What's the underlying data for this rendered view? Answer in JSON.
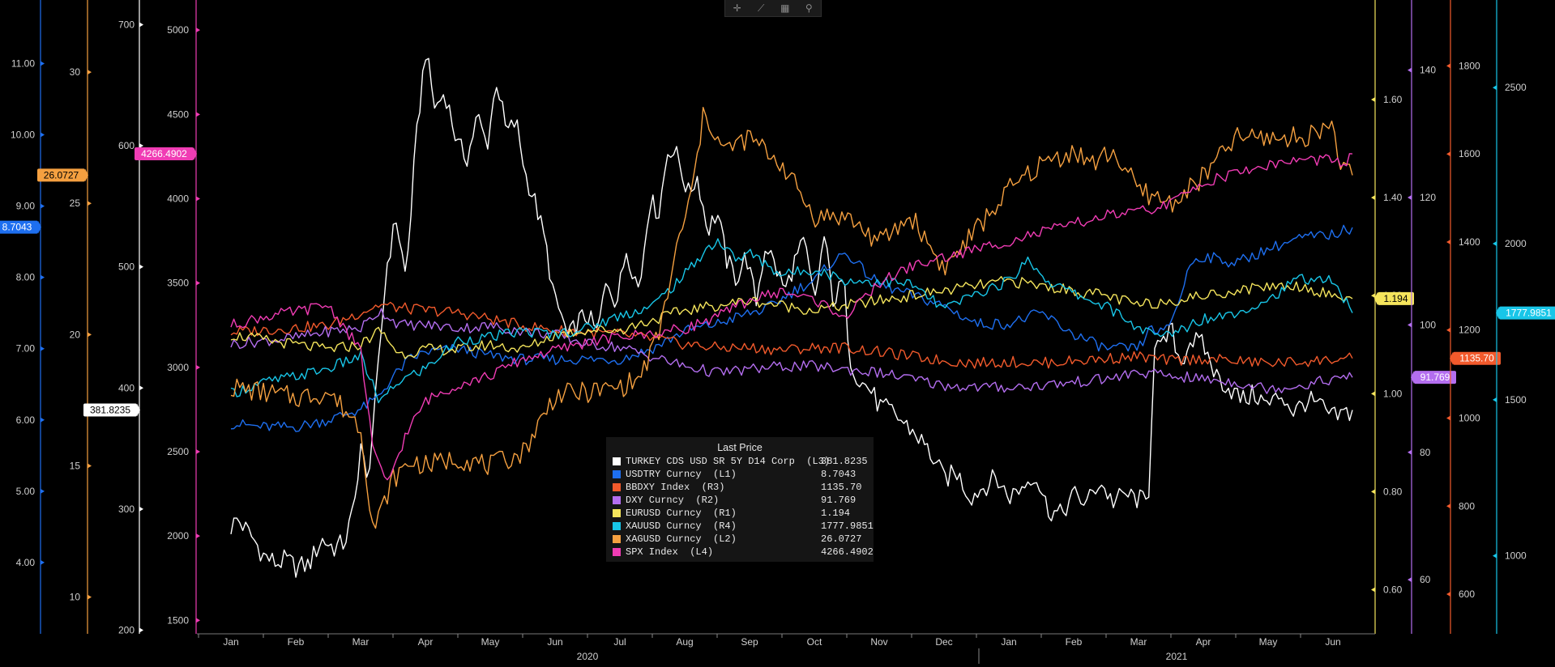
{
  "toolbar": {
    "buttons": [
      {
        "name": "crosshair-icon",
        "glyph": "✛"
      },
      {
        "name": "draw-line-icon",
        "glyph": "⟋"
      },
      {
        "name": "table-icon",
        "glyph": "▦"
      },
      {
        "name": "zoom-icon",
        "glyph": "⚲"
      }
    ]
  },
  "legend": {
    "title": "Last Price",
    "rows": [
      {
        "name": "TURKEY CDS USD SR 5Y D14 Corp  (L3)",
        "value": "381.8235",
        "color": "#ffffff"
      },
      {
        "name": "USDTRY Curncy  (L1)",
        "value": "8.7043",
        "color": "#1e6ff0"
      },
      {
        "name": "BBDXY Index  (R3)",
        "value": "1135.70",
        "color": "#f25a2c"
      },
      {
        "name": "DXY Curncy  (R2)",
        "value": "91.769",
        "color": "#b46ef0"
      },
      {
        "name": "EURUSD Curncy  (R1)",
        "value": "1.194",
        "color": "#f5e55c"
      },
      {
        "name": "XAUUSD Curncy  (R4)",
        "value": "1777.9851",
        "color": "#18c6e8"
      },
      {
        "name": "XAGUSD Curncy  (L2)",
        "value": "26.0727",
        "color": "#f5a040"
      },
      {
        "name": "SPX Index  (L4)",
        "value": "4266.4902",
        "color": "#f03cb4"
      }
    ]
  },
  "chart_data": {
    "type": "line",
    "x_axis": {
      "months": [
        "Jan",
        "Feb",
        "Mar",
        "Apr",
        "May",
        "Jun",
        "Jul",
        "Aug",
        "Sep",
        "Oct",
        "Nov",
        "Dec",
        "Jan",
        "Feb",
        "Mar",
        "Apr",
        "May",
        "Jun"
      ],
      "years": [
        "2020",
        "2021"
      ]
    },
    "axes": {
      "L1": {
        "side": "left",
        "color": "#1e6ff0",
        "range": [
          3.0,
          11.8
        ],
        "ticks": [
          "4.00",
          "5.00",
          "6.00",
          "7.00",
          "8.00",
          "9.00",
          "10.00",
          "11.00"
        ],
        "tick_values": [
          4,
          5,
          6,
          7,
          8,
          9,
          10,
          11
        ],
        "last_label": "8.7043",
        "last_value": 8.7043
      },
      "L2": {
        "side": "left",
        "color": "#f5a040",
        "range": [
          8.6,
          32.5
        ],
        "ticks": [
          "10",
          "15",
          "20",
          "25",
          "30"
        ],
        "tick_values": [
          10,
          15,
          20,
          25,
          30
        ],
        "last_label": "26.0727",
        "last_value": 26.0727
      },
      "L3": {
        "side": "left",
        "color": "#ffffff",
        "range": [
          197,
          715
        ],
        "ticks": [
          "200",
          "300",
          "400",
          "500",
          "600",
          "700"
        ],
        "tick_values": [
          200,
          300,
          400,
          500,
          600,
          700
        ],
        "last_label": "381.8235",
        "last_value": 381.8235
      },
      "L4": {
        "side": "left",
        "color": "#f03cb4",
        "range": [
          1420,
          5140
        ],
        "ticks": [
          "1500",
          "2000",
          "2500",
          "3000",
          "3500",
          "4000",
          "4500",
          "5000"
        ],
        "tick_values": [
          1500,
          2000,
          2500,
          3000,
          3500,
          4000,
          4500,
          5000
        ],
        "last_label": "4266.4902",
        "last_value": 4266.4902
      },
      "R1": {
        "side": "right",
        "color": "#f5e55c",
        "range": [
          0.51,
          1.79
        ],
        "ticks": [
          "0.60",
          "0.80",
          "1.00",
          "1.20",
          "1.40",
          "1.60"
        ],
        "tick_values": [
          0.6,
          0.8,
          1.0,
          1.2,
          1.4,
          1.6
        ],
        "last_label": "1.194",
        "last_value": 1.194
      },
      "R2": {
        "side": "right",
        "color": "#b46ef0",
        "range": [
          51.5,
          150
        ],
        "ticks": [
          "60",
          "80",
          "100",
          "120",
          "140"
        ],
        "tick_values": [
          60,
          80,
          100,
          120,
          140
        ],
        "last_label": "91.769",
        "last_value": 91.769
      },
      "R3": {
        "side": "right",
        "color": "#f25a2c",
        "range": [
          510,
          1935
        ],
        "ticks": [
          "600",
          "800",
          "1000",
          "1200",
          "1400",
          "1600",
          "1800"
        ],
        "tick_values": [
          600,
          800,
          1000,
          1200,
          1400,
          1600,
          1800
        ],
        "last_label": "1135.70",
        "last_value": 1135.7
      },
      "R4": {
        "side": "right",
        "color": "#18c6e8",
        "range": [
          750,
          2760
        ],
        "ticks": [
          "1000",
          "1500",
          "2000",
          "2500"
        ],
        "tick_values": [
          1000,
          1500,
          2000,
          2500
        ],
        "last_label": "1777.9851",
        "last_value": 1777.9851
      }
    },
    "series": [
      {
        "name": "TURKEY CDS USD SR 5Y D14 Corp",
        "axis": "L3",
        "color": "#ffffff",
        "t": [
          0,
          0.1,
          0.35,
          0.5,
          0.7,
          0.85,
          1.0,
          1.2,
          1.4,
          1.6,
          1.75,
          1.9,
          2.0,
          2.1,
          2.25,
          2.4,
          2.55,
          2.7,
          2.85,
          3.0,
          3.15,
          3.3,
          3.5,
          3.65,
          3.8,
          3.95,
          4.1,
          4.25,
          4.4,
          4.55,
          4.7,
          4.85,
          5.0,
          5.1,
          5.2,
          5.35,
          5.5,
          5.65,
          5.8,
          5.95,
          6.1,
          6.3,
          6.45,
          6.6,
          6.75,
          6.9,
          7.05,
          7.2,
          7.35,
          7.5,
          7.65,
          7.8,
          7.95,
          8.1,
          8.25,
          8.4,
          8.55,
          8.7,
          8.85,
          9.0,
          9.15,
          9.3,
          9.45,
          9.55,
          9.7,
          9.85,
          10.0,
          10.2,
          10.4,
          10.6,
          10.8,
          11.0,
          11.2,
          11.4,
          11.6,
          11.8,
          12.0,
          12.2,
          12.4,
          12.6,
          12.8,
          13.0,
          13.2,
          13.4,
          13.6,
          13.8,
          14.0,
          14.15,
          14.25,
          14.35,
          14.5,
          14.65,
          14.8,
          15.0,
          15.2,
          15.4,
          15.6,
          15.8,
          16.0,
          16.2,
          16.4,
          16.6,
          16.8,
          17.0,
          17.15,
          17.3
        ],
        "v": [
          285,
          292,
          275,
          262,
          255,
          258,
          252,
          254,
          275,
          268,
          272,
          300,
          355,
          320,
          400,
          500,
          540,
          490,
          600,
          680,
          630,
          645,
          600,
          590,
          625,
          600,
          655,
          610,
          620,
          575,
          552,
          520,
          470,
          460,
          440,
          455,
          460,
          445,
          490,
          470,
          515,
          480,
          555,
          545,
          600,
          590,
          560,
          575,
          530,
          545,
          505,
          490,
          510,
          470,
          520,
          500,
          480,
          505,
          520,
          470,
          525,
          470,
          490,
          425,
          405,
          400,
          385,
          380,
          370,
          360,
          345,
          325,
          330,
          310,
          318,
          326,
          310,
          318,
          330,
          300,
          295,
          312,
          305,
          323,
          306,
          312,
          308,
          305,
          440,
          430,
          450,
          420,
          440,
          435,
          410,
          400,
          390,
          395,
          385,
          395,
          380,
          390,
          385,
          375,
          378,
          381.8
        ]
      },
      {
        "name": "USDTRY Curncy",
        "axis": "L1",
        "color": "#1e6ff0",
        "t": [
          0,
          0.5,
          1.0,
          1.5,
          2.0,
          2.25,
          2.5,
          2.75,
          3.0,
          3.5,
          4.0,
          4.5,
          5.0,
          5.5,
          6.0,
          6.5,
          7.0,
          7.5,
          8.0,
          8.25,
          8.5,
          8.75,
          9.0,
          9.25,
          9.5,
          9.75,
          10.0,
          10.5,
          11.0,
          11.5,
          12.0,
          12.5,
          13.0,
          13.5,
          14.0,
          14.2,
          14.4,
          14.6,
          14.8,
          15.0,
          15.5,
          16.0,
          16.5,
          17.0,
          17.3
        ],
        "v": [
          5.95,
          5.9,
          5.9,
          6.0,
          6.15,
          6.3,
          6.6,
          6.85,
          6.95,
          7.0,
          6.9,
          6.85,
          6.85,
          6.85,
          6.85,
          7.0,
          7.25,
          7.35,
          7.5,
          7.55,
          7.7,
          7.85,
          7.95,
          8.2,
          8.35,
          8.1,
          7.9,
          7.75,
          7.6,
          7.35,
          7.35,
          7.5,
          7.2,
          7.0,
          7.0,
          7.3,
          7.2,
          7.6,
          8.2,
          8.3,
          8.2,
          8.4,
          8.55,
          8.6,
          8.7
        ]
      },
      {
        "name": "BBDXY Index",
        "axis": "R3",
        "color": "#f25a2c",
        "t": [
          0,
          0.5,
          1.0,
          1.5,
          2.0,
          2.3,
          2.6,
          3.0,
          3.5,
          4.0,
          4.5,
          5.0,
          5.5,
          6.0,
          6.5,
          7.0,
          7.5,
          8.0,
          8.5,
          9.0,
          9.5,
          10.0,
          10.5,
          11.0,
          11.5,
          12.0,
          12.5,
          13.0,
          13.5,
          14.0,
          14.5,
          15.0,
          15.5,
          16.0,
          16.5,
          17.0,
          17.3
        ],
        "v": [
          1195,
          1200,
          1205,
          1210,
          1240,
          1258,
          1250,
          1245,
          1240,
          1225,
          1210,
          1200,
          1195,
          1190,
          1180,
          1168,
          1160,
          1160,
          1155,
          1160,
          1160,
          1150,
          1140,
          1130,
          1125,
          1128,
          1125,
          1130,
          1135,
          1140,
          1130,
          1135,
          1130,
          1125,
          1128,
          1133,
          1135.7
        ]
      },
      {
        "name": "DXY Curncy",
        "axis": "R2",
        "color": "#b46ef0",
        "t": [
          0,
          0.5,
          1.0,
          1.5,
          2.0,
          2.3,
          2.6,
          3.0,
          3.5,
          4.0,
          4.5,
          5.0,
          5.5,
          6.0,
          6.5,
          7.0,
          7.5,
          8.0,
          8.5,
          9.0,
          9.5,
          10.0,
          10.5,
          11.0,
          11.5,
          12.0,
          12.5,
          13.0,
          13.5,
          14.0,
          14.5,
          15.0,
          15.5,
          16.0,
          16.5,
          17.0,
          17.3
        ],
        "v": [
          97,
          97.5,
          98,
          99,
          99.5,
          102.3,
          100,
          100,
          99.5,
          99.8,
          99,
          98.5,
          97,
          96.5,
          95,
          93.5,
          92.5,
          93,
          93.5,
          93.5,
          93,
          92.5,
          91.5,
          90.5,
          90.2,
          90.2,
          90.5,
          91,
          91.5,
          92.5,
          92,
          91.5,
          91,
          90,
          90.5,
          91.5,
          91.77
        ]
      },
      {
        "name": "EURUSD Curncy",
        "axis": "R1",
        "color": "#f5e55c",
        "t": [
          0,
          0.5,
          1.0,
          1.5,
          2.0,
          2.3,
          2.6,
          3.0,
          3.5,
          4.0,
          4.5,
          5.0,
          5.5,
          6.0,
          6.5,
          7.0,
          7.5,
          8.0,
          8.5,
          9.0,
          9.5,
          10.0,
          10.5,
          11.0,
          11.5,
          12.0,
          12.5,
          13.0,
          13.5,
          14.0,
          14.5,
          15.0,
          15.5,
          16.0,
          16.5,
          17.0,
          17.3
        ],
        "v": [
          1.12,
          1.11,
          1.1,
          1.09,
          1.1,
          1.13,
          1.08,
          1.09,
          1.09,
          1.1,
          1.09,
          1.12,
          1.13,
          1.13,
          1.15,
          1.17,
          1.18,
          1.19,
          1.18,
          1.17,
          1.18,
          1.19,
          1.2,
          1.21,
          1.22,
          1.23,
          1.22,
          1.21,
          1.2,
          1.18,
          1.19,
          1.2,
          1.21,
          1.22,
          1.22,
          1.2,
          1.194
        ]
      },
      {
        "name": "XAUUSD Curncy",
        "axis": "R4",
        "color": "#18c6e8",
        "t": [
          0,
          0.5,
          1.0,
          1.5,
          2.0,
          2.3,
          2.6,
          3.0,
          3.5,
          4.0,
          4.5,
          5.0,
          5.5,
          6.0,
          6.5,
          7.0,
          7.3,
          7.5,
          7.8,
          8.0,
          8.5,
          9.0,
          9.5,
          10.0,
          10.5,
          11.0,
          11.5,
          12.0,
          12.3,
          12.6,
          13.0,
          13.5,
          14.0,
          14.3,
          14.6,
          15.0,
          15.5,
          16.0,
          16.5,
          17.0,
          17.3
        ],
        "v": [
          1520,
          1555,
          1575,
          1600,
          1640,
          1490,
          1560,
          1600,
          1690,
          1700,
          1720,
          1710,
          1730,
          1770,
          1800,
          1900,
          1975,
          2010,
          1950,
          1970,
          1900,
          1920,
          1880,
          1880,
          1870,
          1790,
          1840,
          1880,
          1950,
          1880,
          1840,
          1800,
          1730,
          1700,
          1720,
          1760,
          1780,
          1820,
          1890,
          1880,
          1778
        ]
      },
      {
        "name": "XAGUSD Curncy",
        "axis": "L2",
        "color": "#f5a040",
        "t": [
          0,
          0.5,
          1.0,
          1.5,
          2.0,
          2.2,
          2.5,
          2.8,
          3.0,
          3.5,
          4.0,
          4.5,
          5.0,
          5.5,
          6.0,
          6.3,
          6.6,
          6.9,
          7.1,
          7.3,
          7.6,
          8.0,
          8.5,
          9.0,
          9.5,
          10.0,
          10.5,
          11.0,
          11.5,
          12.0,
          12.5,
          13.0,
          13.3,
          13.6,
          14.0,
          14.5,
          15.0,
          15.5,
          16.0,
          16.5,
          17.0,
          17.15,
          17.3
        ],
        "v": [
          18.0,
          17.8,
          17.6,
          17.8,
          16.5,
          12.5,
          14.5,
          15.2,
          15.0,
          15.3,
          15.0,
          15.5,
          17.7,
          17.8,
          18.0,
          18.3,
          20.0,
          23.5,
          25.3,
          28.5,
          27.0,
          27.5,
          26.5,
          24.5,
          24.5,
          23.5,
          24.5,
          22.5,
          24.0,
          25.5,
          26.5,
          27.0,
          26.5,
          27.0,
          25.5,
          25.0,
          26.0,
          27.5,
          27.5,
          27.5,
          28.0,
          26.2,
          26.07
        ]
      },
      {
        "name": "SPX Index",
        "axis": "L4",
        "color": "#f03cb4",
        "t": [
          0,
          0.5,
          1.0,
          1.5,
          2.0,
          2.2,
          2.4,
          2.7,
          3.0,
          3.5,
          4.0,
          4.5,
          5.0,
          5.5,
          6.0,
          6.5,
          7.0,
          7.5,
          8.0,
          8.5,
          9.0,
          9.5,
          10.0,
          10.5,
          11.0,
          11.5,
          12.0,
          12.5,
          13.0,
          13.5,
          14.0,
          14.5,
          15.0,
          15.5,
          16.0,
          16.5,
          17.0,
          17.15,
          17.3
        ],
        "v": [
          3250,
          3300,
          3330,
          3370,
          3100,
          2500,
          2300,
          2600,
          2800,
          2900,
          2950,
          3050,
          3100,
          3150,
          3180,
          3200,
          3230,
          3300,
          3400,
          3450,
          3400,
          3300,
          3500,
          3600,
          3650,
          3700,
          3750,
          3800,
          3850,
          3900,
          3920,
          3970,
          4100,
          4150,
          4200,
          4230,
          4230,
          4190,
          4266
        ]
      }
    ]
  }
}
